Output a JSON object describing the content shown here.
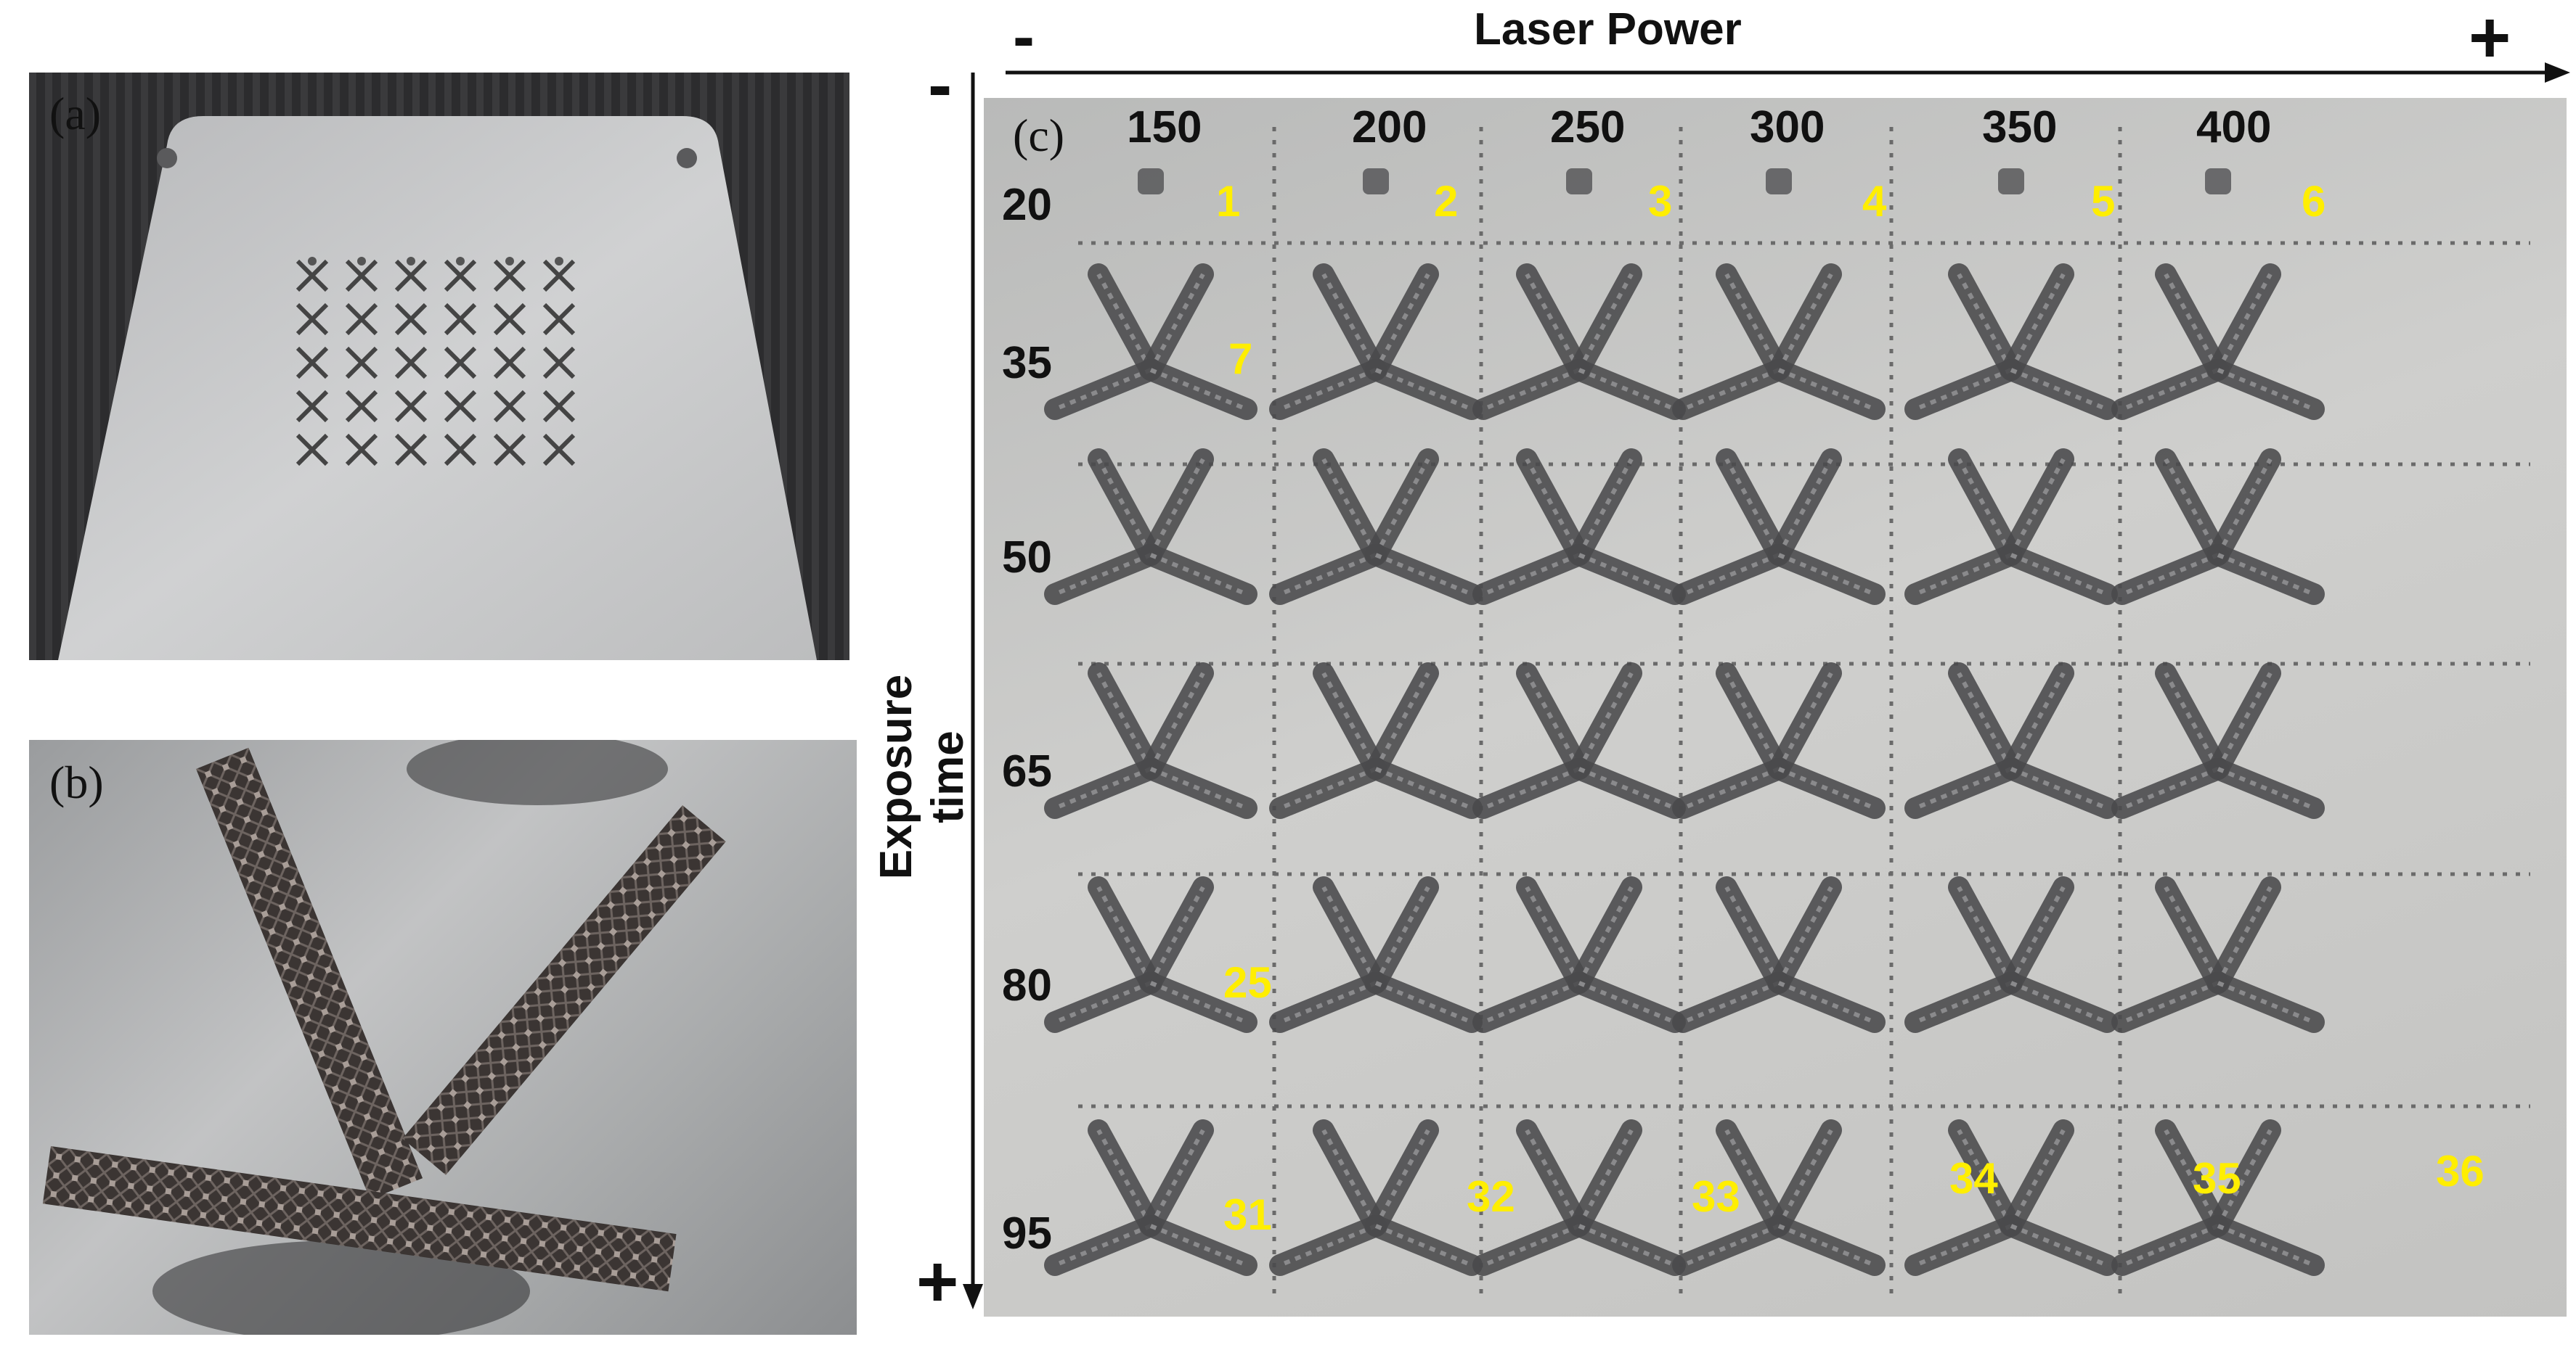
{
  "panels": {
    "a": {
      "label": "(a)"
    },
    "b": {
      "label": "(b)"
    },
    "c": {
      "label": "(c)"
    }
  },
  "axes": {
    "x": {
      "title": "Laser Power",
      "minus": "-",
      "plus": "+",
      "values": [
        "150",
        "200",
        "250",
        "300",
        "350",
        "400"
      ]
    },
    "y": {
      "title": "Exposure time",
      "minus": "-",
      "plus": "+",
      "values": [
        "20",
        "35",
        "50",
        "65",
        "80",
        "95"
      ]
    }
  },
  "specimen_numbers": [
    {
      "row": 0,
      "col": 0,
      "text": "1"
    },
    {
      "row": 0,
      "col": 1,
      "text": "2"
    },
    {
      "row": 0,
      "col": 2,
      "text": "3"
    },
    {
      "row": 0,
      "col": 3,
      "text": "4"
    },
    {
      "row": 0,
      "col": 4,
      "text": "5"
    },
    {
      "row": 0,
      "col": 5,
      "text": "6"
    },
    {
      "row": 1,
      "col": 0,
      "text": "7"
    },
    {
      "row": 4,
      "col": 0,
      "text": "25"
    },
    {
      "row": 5,
      "col": 0,
      "text": "31"
    },
    {
      "row": 5,
      "col": 1,
      "text": "32"
    },
    {
      "row": 5,
      "col": 2,
      "text": "33"
    },
    {
      "row": 5,
      "col": 3,
      "text": "34"
    },
    {
      "row": 5,
      "col": 4,
      "text": "35"
    },
    {
      "row": 5,
      "col": 5,
      "text": "36"
    }
  ],
  "colors": {
    "label_yellow": "#ffee00",
    "specimen": "#4a4a4c",
    "plate": "#c8c9c8"
  }
}
